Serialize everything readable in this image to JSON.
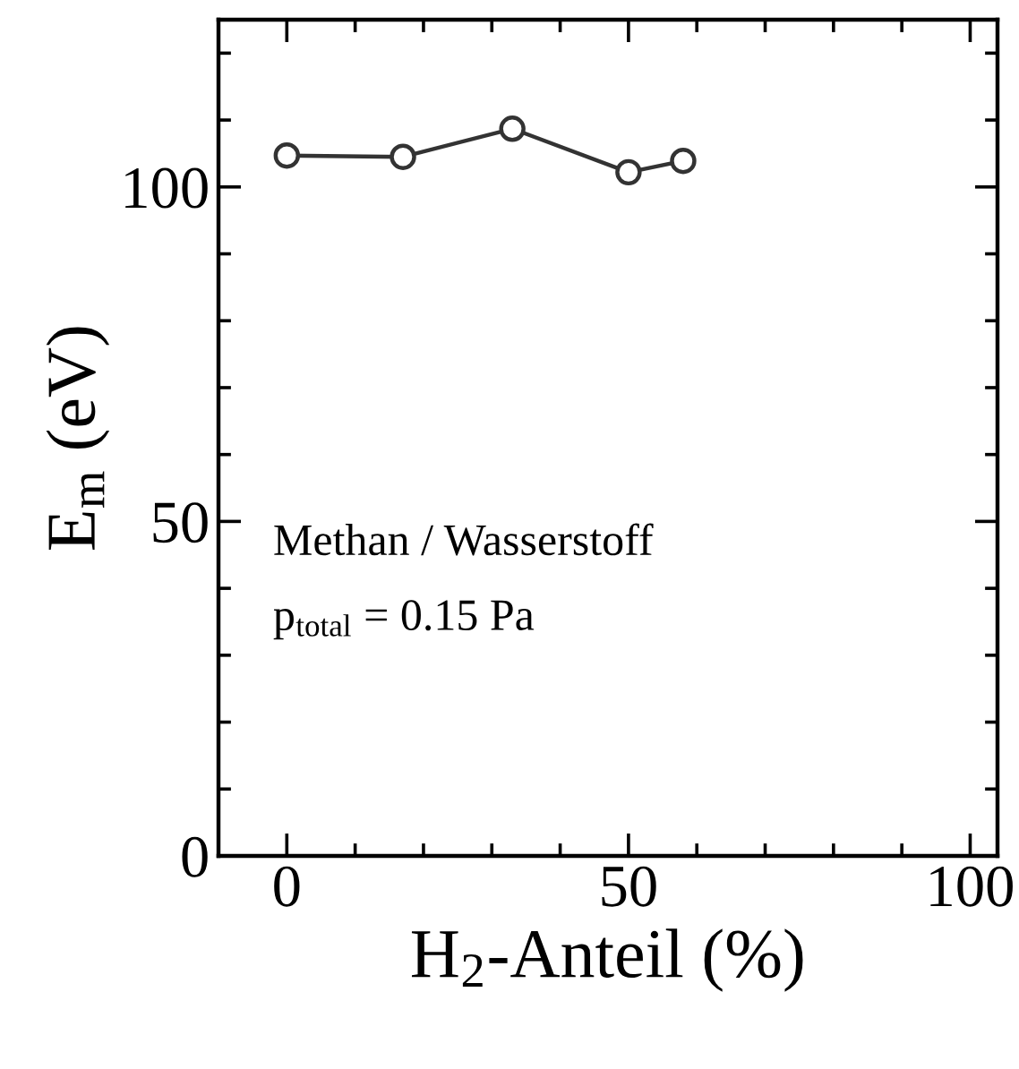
{
  "chart_data": {
    "type": "line",
    "xlabel": "H$_{2}$-Anteil (%)",
    "ylabel": "E$_{m}$ (eV)",
    "x": [
      0,
      17,
      33,
      50,
      58
    ],
    "series": [
      {
        "color": "#333333",
        "values": [
          104.7,
          104.5,
          108.7,
          102.2,
          103.9
        ]
      }
    ],
    "marker": "circle",
    "line_style": "solid",
    "xlim": [
      -10,
      104
    ],
    "xticks": [
      0,
      50,
      100
    ],
    "ylim": [
      0,
      125
    ],
    "yticks": [
      0,
      50,
      100
    ],
    "grid": false,
    "annotations": [
      "Methan / Wasserstoff",
      "p$_{total}$ = 0.15 Pa"
    ]
  }
}
